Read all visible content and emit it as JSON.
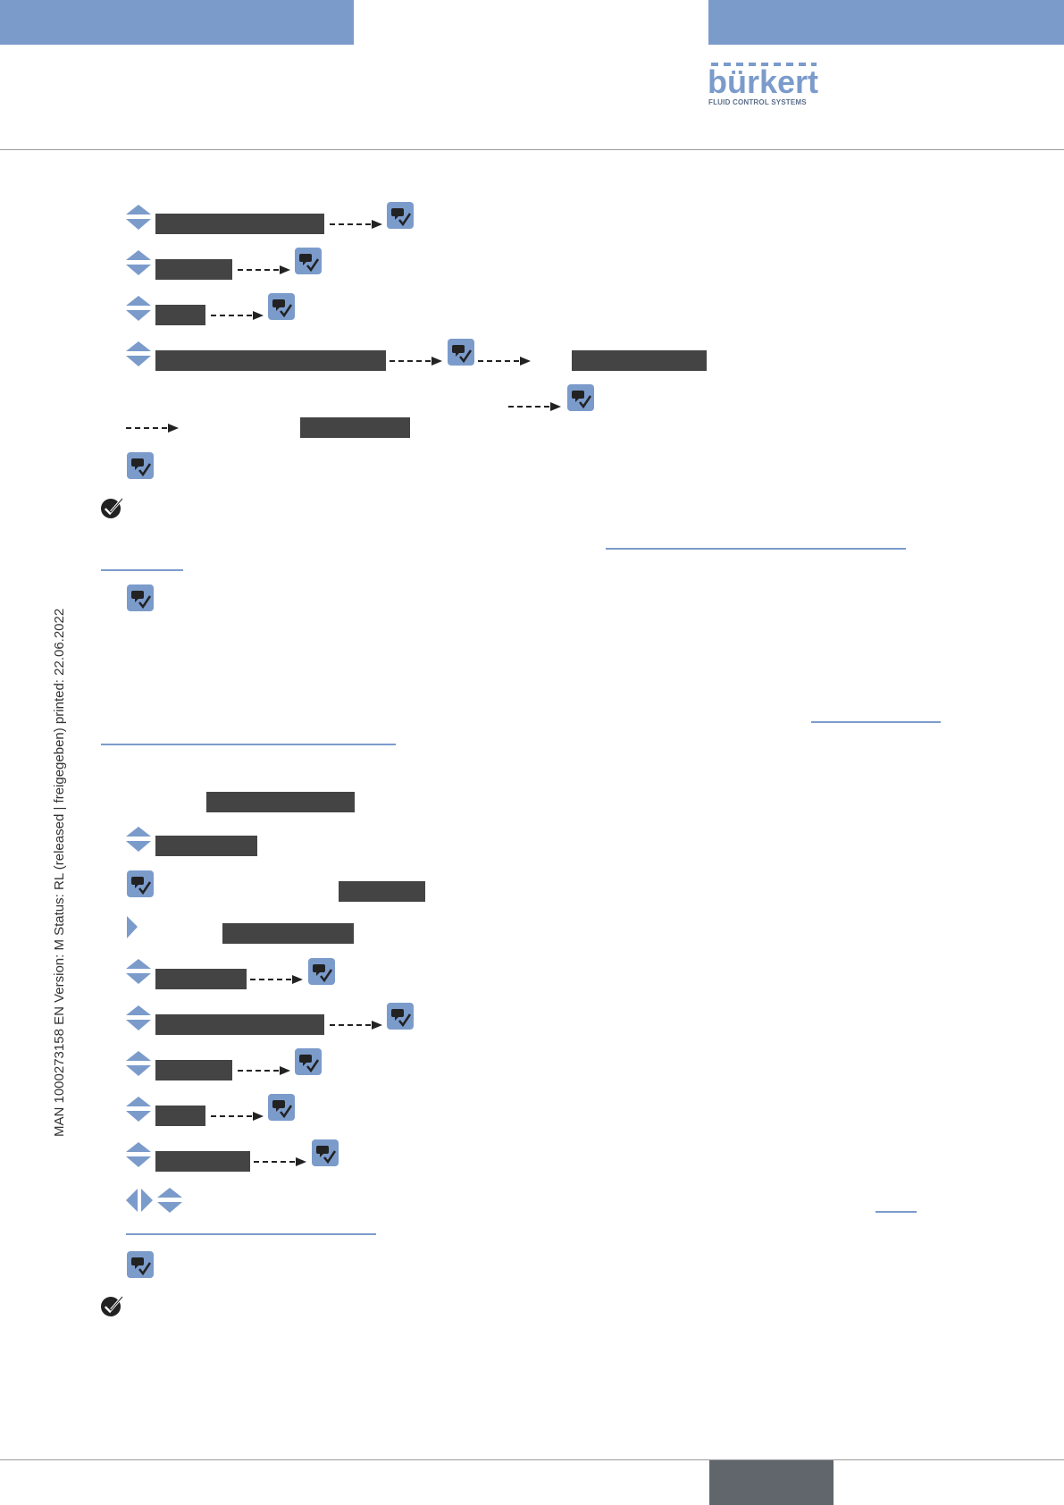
{
  "header": {
    "brand_name": "bürkert",
    "brand_tagline": "FLUID CONTROL SYSTEMS",
    "accent_color": "#7b9bcb"
  },
  "side_meta": {
    "text": "MAN  1000273158  EN  Version: M Status: RL (released | freigegeben)  printed: 22.06.2022"
  },
  "icons": {
    "updown": "up-down-arrows-icon",
    "ok": "ok-button-icon",
    "arrow": "dashed-arrow-icon",
    "check": "result-check-icon",
    "right": "right-arrow-icon",
    "leftright": "left-right-arrows-icon"
  }
}
